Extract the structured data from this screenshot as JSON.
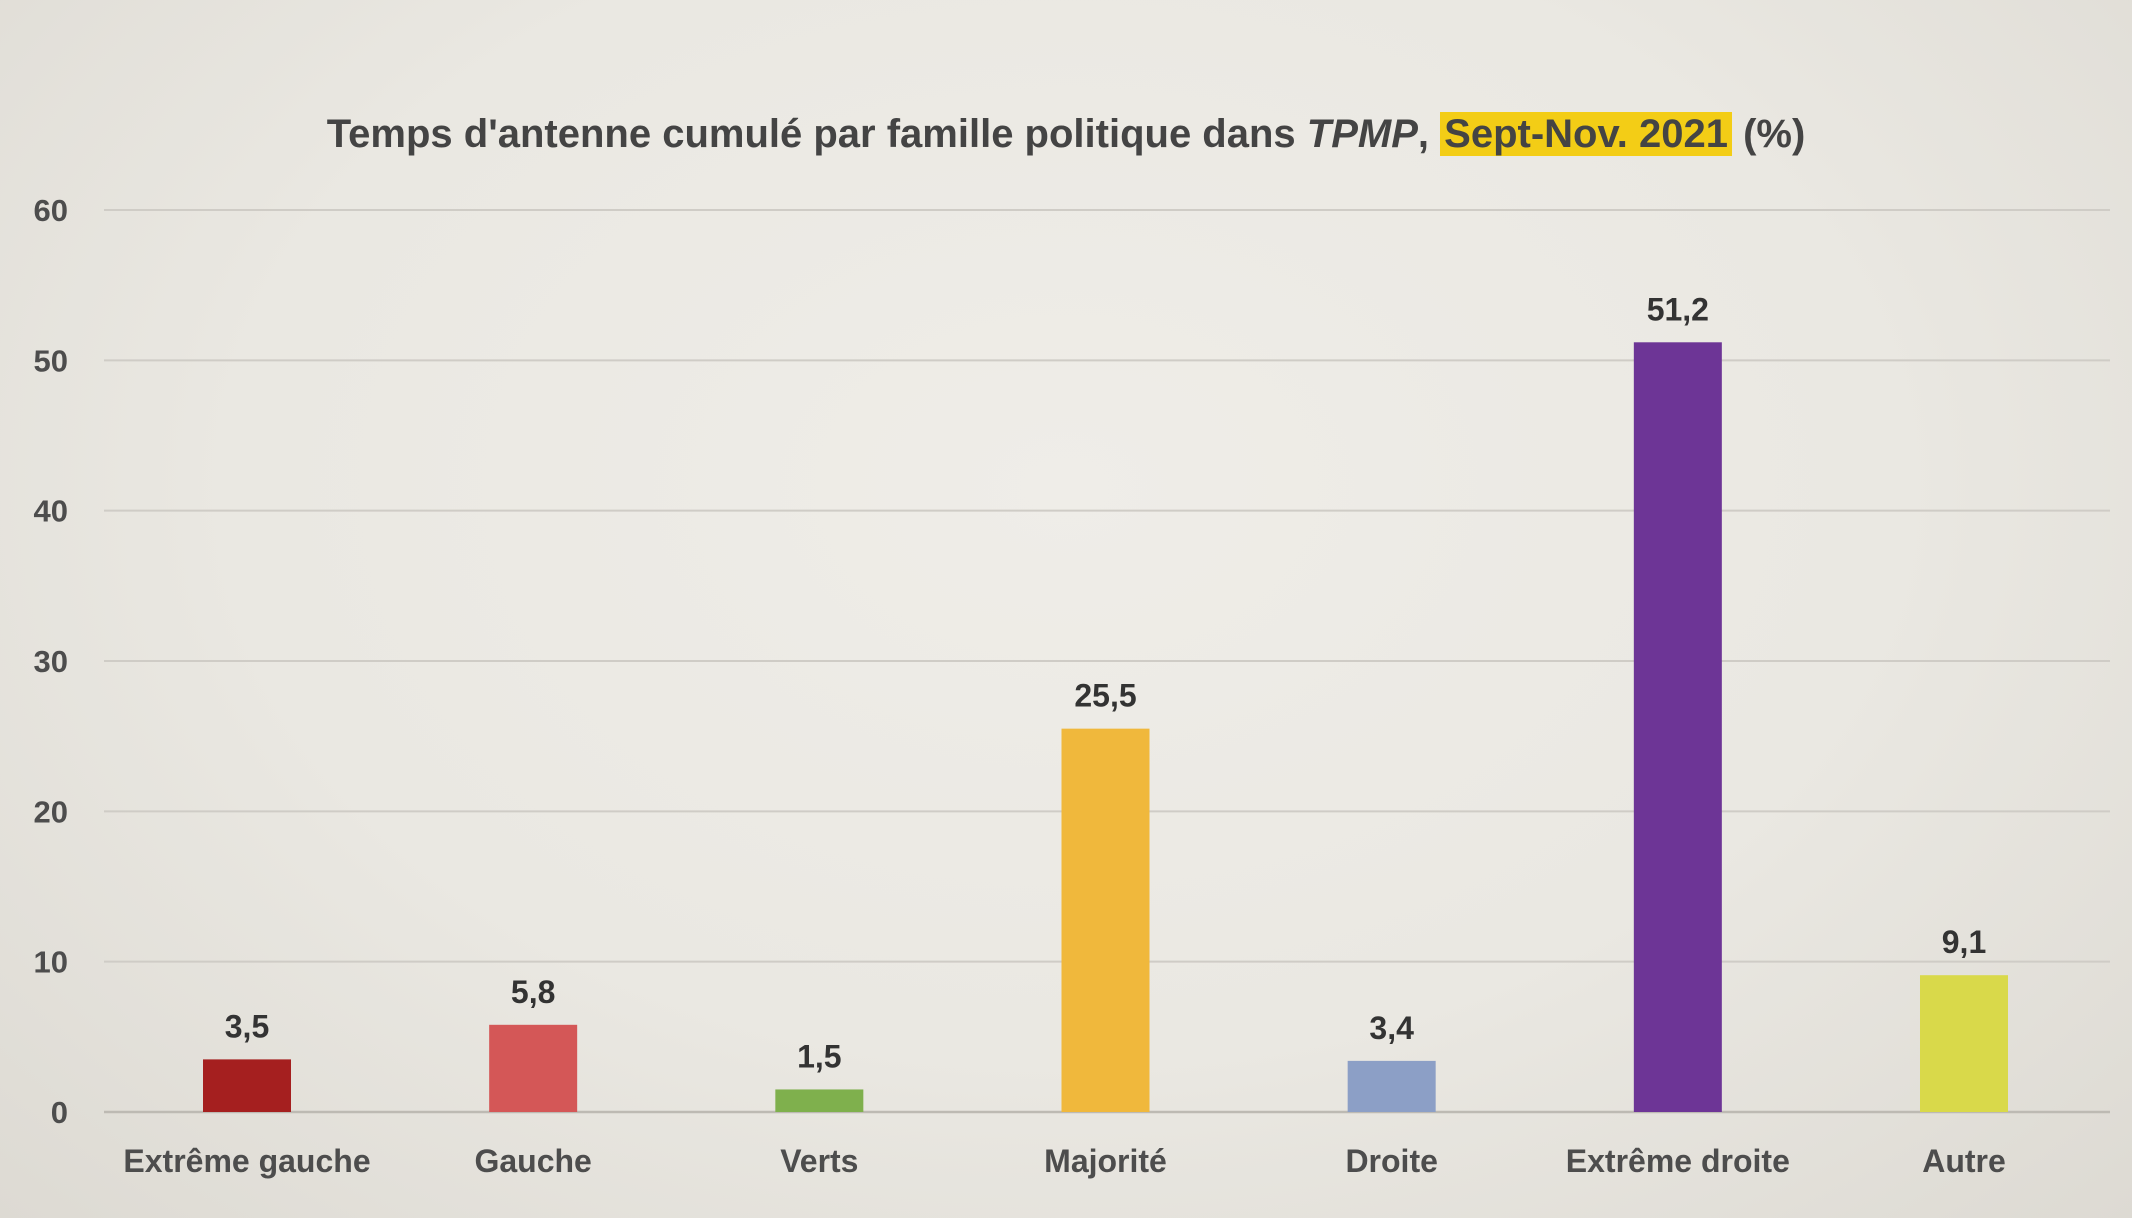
{
  "chart_data": {
    "type": "bar",
    "title": {
      "prefix": "Temps d'antenne cumulé par famille politique dans ",
      "program": "TPMP",
      "separator": ", ",
      "period": "Sept-Nov. 2021",
      "unit": " (%)"
    },
    "categories": [
      "Extrême gauche",
      "Gauche",
      "Verts",
      "Majorité",
      "Droite",
      "Extrême droite",
      "Autre"
    ],
    "values": [
      3.5,
      5.8,
      1.5,
      25.5,
      3.4,
      51.2,
      9.1
    ],
    "value_labels": [
      "3,5",
      "5,8",
      "1,5",
      "25,5",
      "3,4",
      "51,2",
      "9,1"
    ],
    "colors": [
      "#a51f1f",
      "#d45757",
      "#7fb04d",
      "#f0b83c",
      "#8c9fc6",
      "#6d3596",
      "#d9d94a"
    ],
    "highlight_color": "#f3cd16",
    "ylim": [
      0,
      60
    ],
    "yticks": [
      0,
      10,
      20,
      30,
      40,
      50,
      60
    ],
    "grid": true,
    "xlabel": "",
    "ylabel": ""
  }
}
